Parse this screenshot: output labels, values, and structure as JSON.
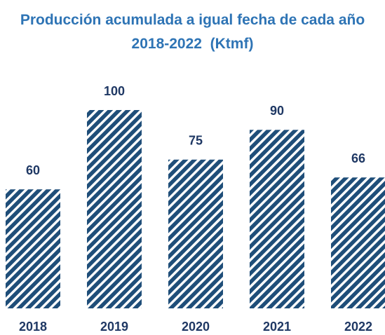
{
  "chart_data": {
    "type": "bar",
    "title": "Producción acumulada a igual fecha de cada año 2018-2022  (Ktmf)",
    "categories": [
      "2018",
      "2019",
      "2020",
      "2021",
      "2022"
    ],
    "values": [
      60,
      100,
      75,
      90,
      66
    ],
    "color": "#1f4e79",
    "ylim": [
      0,
      100
    ]
  }
}
